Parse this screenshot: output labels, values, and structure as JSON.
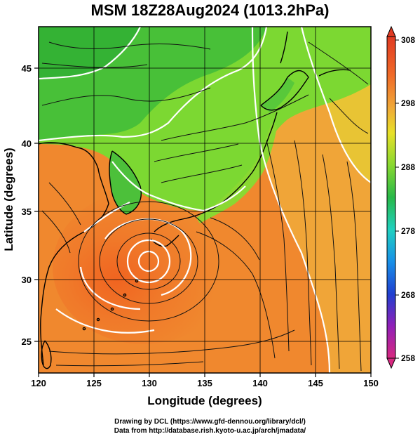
{
  "title": "MSM 18Z28Aug2024 (1013.2hPa)",
  "axes": {
    "xlabel": "Longitude (degrees)",
    "ylabel": "Latitude  (degrees)",
    "xticks": [
      "120",
      "125",
      "130",
      "135",
      "140",
      "145",
      "150"
    ],
    "yticks": [
      "25",
      "30",
      "35",
      "40",
      "45"
    ]
  },
  "colorbar": {
    "labels": [
      "308",
      "298",
      "288",
      "278",
      "268",
      "258"
    ],
    "colors": [
      "#d8287a",
      "#b020b0",
      "#2030c8",
      "#1c8ee8",
      "#20d8c8",
      "#20b040",
      "#78d830",
      "#e8e020",
      "#f0a030",
      "#f06020",
      "#e83020"
    ]
  },
  "map_colors": {
    "warm_sea": "#f07a2a",
    "mid_sea": "#f0b23a",
    "cool_land": "#58c83a",
    "cold_north": "#30b030",
    "coast": "#000000",
    "isotherm": "#ffffff",
    "streamline": "#000000"
  },
  "credits": {
    "line1": "Drawing by DCL (https://www.gfd-dennou.org/library/dcl/)",
    "line2": "Data from http://database.rish.kyoto-u.ac.jp/arch/jmadata/"
  }
}
